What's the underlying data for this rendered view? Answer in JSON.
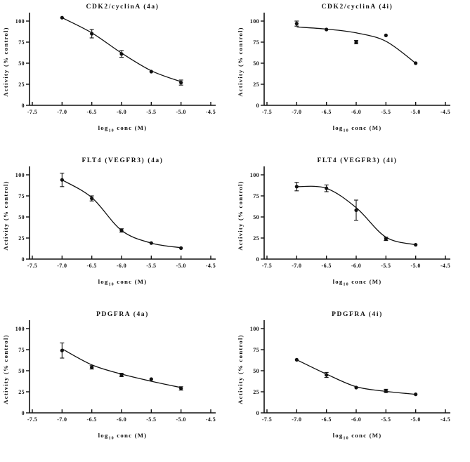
{
  "figure": {
    "background": "#ffffff",
    "ink_color": "#111111",
    "axes": {
      "x_label_parts": [
        "log",
        "10",
        " conc (M)"
      ],
      "y_label": "Activity (% control)",
      "x_ticks": [
        "-7.5",
        "-7.0",
        "-6.5",
        "-6.0",
        "-5.5",
        "-5.0",
        "-4.5"
      ],
      "x_tick_values": [
        -7.5,
        -7.0,
        -6.5,
        -6.0,
        -5.5,
        -5.0,
        -4.5
      ],
      "y_ticks": [
        "0",
        "25",
        "50",
        "75",
        "100"
      ],
      "y_tick_values": [
        0,
        25,
        50,
        75,
        100
      ],
      "xlim": [
        -7.5,
        -4.5
      ],
      "ylim": [
        0,
        110
      ],
      "grid": "off",
      "legend": "none"
    }
  },
  "chart_data": [
    {
      "type": "scatter",
      "title": "CDK2/cyclinA (4a)",
      "xlabel": "log10 conc (M)",
      "ylabel": "Activity (% control)",
      "xlim": [
        -7.5,
        -4.5
      ],
      "ylim": [
        0,
        110
      ],
      "x": [
        -7.0,
        -6.5,
        -6.0,
        -5.5,
        -5.0
      ],
      "y": [
        104,
        85,
        61,
        40,
        27
      ],
      "yerr": [
        0,
        5,
        4,
        0,
        3
      ],
      "curve": [
        [
          -7.0,
          104
        ],
        [
          -6.5,
          86
        ],
        [
          -6.0,
          62
        ],
        [
          -5.5,
          41
        ],
        [
          -5.0,
          28
        ]
      ]
    },
    {
      "type": "scatter",
      "title": "CDK2/cyclinA (4i)",
      "xlabel": "log10 conc (M)",
      "ylabel": "Activity (% control)",
      "xlim": [
        -7.5,
        -4.5
      ],
      "ylim": [
        0,
        110
      ],
      "x": [
        -7.0,
        -6.5,
        -6.0,
        -5.5,
        -5.0
      ],
      "y": [
        97,
        90,
        75,
        83,
        50
      ],
      "yerr": [
        3,
        0,
        2,
        0,
        0
      ],
      "curve": [
        [
          -7.0,
          93
        ],
        [
          -6.5,
          90.5
        ],
        [
          -6.0,
          86
        ],
        [
          -5.5,
          76
        ],
        [
          -5.0,
          50
        ]
      ]
    },
    {
      "type": "scatter",
      "title": "FLT4 (VEGFR3) (4a)",
      "xlabel": "log10 conc (M)",
      "ylabel": "Activity (% control)",
      "xlim": [
        -7.5,
        -4.5
      ],
      "ylim": [
        0,
        110
      ],
      "x": [
        -7.0,
        -6.5,
        -6.0,
        -5.5,
        -5.0
      ],
      "y": [
        94,
        72,
        34,
        19,
        13
      ],
      "yerr": [
        8,
        3,
        2,
        0,
        0
      ],
      "curve": [
        [
          -7.0,
          94
        ],
        [
          -6.5,
          73
        ],
        [
          -6.0,
          34
        ],
        [
          -5.5,
          19
        ],
        [
          -5.0,
          13.5
        ]
      ]
    },
    {
      "type": "scatter",
      "title": "FLT4 (VEGFR3) (4i)",
      "xlabel": "log10 conc (M)",
      "ylabel": "Activity (% control)",
      "xlim": [
        -7.5,
        -4.5
      ],
      "ylim": [
        0,
        110
      ],
      "x": [
        -7.0,
        -6.5,
        -6.0,
        -5.5,
        -5.0
      ],
      "y": [
        86,
        84,
        58,
        24,
        17
      ],
      "yerr": [
        5,
        4,
        12,
        2,
        0
      ],
      "curve": [
        [
          -7.0,
          86
        ],
        [
          -6.5,
          84
        ],
        [
          -6.0,
          61
        ],
        [
          -5.5,
          26
        ],
        [
          -5.0,
          17
        ]
      ]
    },
    {
      "type": "scatter",
      "title": "PDGFRA (4a)",
      "xlabel": "log10 conc (M)",
      "ylabel": "Activity (% control)",
      "xlim": [
        -7.5,
        -4.5
      ],
      "ylim": [
        0,
        110
      ],
      "x": [
        -7.0,
        -6.5,
        -6.0,
        -5.5,
        -5.0
      ],
      "y": [
        74,
        54,
        45,
        40,
        29
      ],
      "yerr": [
        9,
        2,
        2,
        0,
        2
      ],
      "curve": [
        [
          -7.0,
          76
        ],
        [
          -6.5,
          57
        ],
        [
          -6.0,
          46
        ],
        [
          -5.5,
          37.5
        ],
        [
          -5.0,
          30
        ]
      ]
    },
    {
      "type": "scatter",
      "title": "PDGFRA (4i)",
      "xlabel": "log10 conc (M)",
      "ylabel": "Activity (% control)",
      "xlim": [
        -7.5,
        -4.5
      ],
      "ylim": [
        0,
        110
      ],
      "x": [
        -7.0,
        -6.5,
        -6.0,
        -5.5,
        -5.0
      ],
      "y": [
        63,
        45,
        30,
        26,
        22
      ],
      "yerr": [
        0,
        3,
        0,
        2,
        0
      ],
      "curve": [
        [
          -7.0,
          63
        ],
        [
          -6.5,
          46
        ],
        [
          -6.0,
          31
        ],
        [
          -5.5,
          25.5
        ],
        [
          -5.0,
          22
        ]
      ]
    }
  ]
}
